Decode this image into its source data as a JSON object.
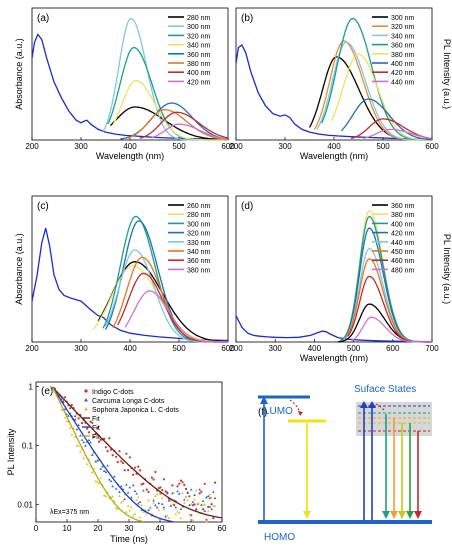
{
  "chart_data": [
    {
      "panel": "(a)",
      "type": "line",
      "xlabel": "Wavelength (nm)",
      "ylabel_left": "Absorbance (a.u.)",
      "ylabel_right": "",
      "xlim": [
        200,
        600
      ],
      "xticks": [
        200,
        300,
        400,
        500,
        600
      ],
      "ylim": [
        0,
        1.0
      ],
      "legend_position": "top-right",
      "absorbance": {
        "x": [
          200,
          205,
          212,
          220,
          230,
          245,
          260,
          275,
          290,
          300,
          305,
          312,
          320,
          335,
          350,
          370,
          390,
          410,
          430,
          450,
          480,
          520,
          560,
          600
        ],
        "y": [
          0.62,
          0.74,
          0.8,
          0.76,
          0.62,
          0.44,
          0.32,
          0.22,
          0.15,
          0.13,
          0.14,
          0.15,
          0.12,
          0.08,
          0.06,
          0.045,
          0.035,
          0.03,
          0.025,
          0.02,
          0.015,
          0.01,
          0.008,
          0.006
        ]
      },
      "series": [
        {
          "name": "280 nm",
          "color": "#000000",
          "peak": 410,
          "amp": 0.25,
          "wl": 55,
          "wr": 85,
          "start": 360,
          "end": 600
        },
        {
          "name": "300 nm",
          "color": "#7fc7ea",
          "peak": 402,
          "amp": 0.92,
          "wl": 35,
          "wr": 45,
          "start": 345,
          "end": 600
        },
        {
          "name": "320 nm",
          "color": "#1aa089",
          "peak": 408,
          "amp": 0.7,
          "wl": 40,
          "wr": 52,
          "start": 355,
          "end": 600
        },
        {
          "name": "340 nm",
          "color": "#f0e060",
          "peak": 412,
          "amp": 0.45,
          "wl": 40,
          "wr": 55,
          "start": 365,
          "end": 600
        },
        {
          "name": "360 nm",
          "color": "#1f6fb8",
          "peak": 485,
          "amp": 0.28,
          "wl": 55,
          "wr": 60,
          "start": 380,
          "end": 600
        },
        {
          "name": "380 nm",
          "color": "#e07a20",
          "peak": 470,
          "amp": 0.23,
          "wl": 45,
          "wr": 65,
          "start": 395,
          "end": 600
        },
        {
          "name": "400 nm",
          "color": "#c02a2a",
          "peak": 495,
          "amp": 0.21,
          "wl": 45,
          "wr": 65,
          "start": 420,
          "end": 600
        },
        {
          "name": "420 nm",
          "color": "#d070d0",
          "peak": 500,
          "amp": 0.12,
          "wl": 40,
          "wr": 60,
          "start": 445,
          "end": 600
        }
      ]
    },
    {
      "panel": "(b)",
      "type": "line",
      "xlabel": "Wavelength (nm)",
      "ylabel_left": "",
      "ylabel_right": "PL Intensity (a.u.)",
      "xlim": [
        200,
        600
      ],
      "xticks": [
        200,
        300,
        400,
        500,
        600
      ],
      "ylim": [
        0,
        1.0
      ],
      "legend_position": "top-right",
      "absorbance": {
        "x": [
          200,
          205,
          212,
          220,
          230,
          245,
          260,
          275,
          290,
          300,
          310,
          320,
          335,
          350,
          370,
          390,
          410,
          440,
          480,
          520,
          560,
          600
        ],
        "y": [
          0.58,
          0.7,
          0.72,
          0.66,
          0.52,
          0.36,
          0.26,
          0.2,
          0.18,
          0.19,
          0.17,
          0.12,
          0.08,
          0.06,
          0.045,
          0.035,
          0.03,
          0.024,
          0.018,
          0.012,
          0.008,
          0.006
        ]
      },
      "series": [
        {
          "name": "300 nm",
          "color": "#000000",
          "peak": 405,
          "amp": 0.63,
          "wl": 40,
          "wr": 65,
          "start": 350,
          "end": 600
        },
        {
          "name": "320 nm",
          "color": "#f08a30",
          "peak": 420,
          "amp": 0.75,
          "wl": 40,
          "wr": 55,
          "start": 360,
          "end": 600
        },
        {
          "name": "340 nm",
          "color": "#7fc7ea",
          "peak": 425,
          "amp": 0.74,
          "wl": 40,
          "wr": 55,
          "start": 365,
          "end": 600
        },
        {
          "name": "360 nm",
          "color": "#1aa089",
          "peak": 438,
          "amp": 0.92,
          "wl": 45,
          "wr": 55,
          "start": 375,
          "end": 600
        },
        {
          "name": "380 nm",
          "color": "#f0e060",
          "peak": 450,
          "amp": 0.65,
          "wl": 45,
          "wr": 55,
          "start": 395,
          "end": 600
        },
        {
          "name": "400 nm",
          "color": "#1f6fb8",
          "peak": 470,
          "amp": 0.31,
          "wl": 45,
          "wr": 60,
          "start": 415,
          "end": 600
        },
        {
          "name": "420 nm",
          "color": "#c02a2a",
          "peak": 500,
          "amp": 0.16,
          "wl": 40,
          "wr": 60,
          "start": 435,
          "end": 600
        },
        {
          "name": "440 nm",
          "color": "#d070d0",
          "peak": 515,
          "amp": 0.08,
          "wl": 40,
          "wr": 60,
          "start": 460,
          "end": 600
        }
      ]
    },
    {
      "panel": "(c)",
      "type": "line",
      "xlabel": "",
      "ylabel_left": "Absorbance (a.u.)",
      "ylabel_right": "",
      "xlim": [
        200,
        600
      ],
      "xticks": [
        200,
        300,
        400,
        500,
        600
      ],
      "ylim": [
        0,
        1.0
      ],
      "legend_position": "top-right",
      "absorbance": {
        "x": [
          200,
          210,
          220,
          228,
          236,
          245,
          255,
          265,
          280,
          300,
          320,
          335,
          345,
          360,
          380,
          400,
          430,
          460,
          500,
          550,
          600
        ],
        "y": [
          0.28,
          0.45,
          0.68,
          0.78,
          0.66,
          0.46,
          0.36,
          0.32,
          0.3,
          0.28,
          0.22,
          0.18,
          0.17,
          0.12,
          0.08,
          0.06,
          0.045,
          0.035,
          0.025,
          0.015,
          0.01
        ]
      },
      "series": [
        {
          "name": "260 nm",
          "color": "#000000",
          "peak": 410,
          "amp": 0.55,
          "wl": 65,
          "wr": 80,
          "start": 335,
          "end": 600
        },
        {
          "name": "280 nm",
          "color": "#f0e060",
          "peak": 405,
          "amp": 0.52,
          "wl": 60,
          "wr": 75,
          "start": 325,
          "end": 600
        },
        {
          "name": "300 nm",
          "color": "#1aa089",
          "peak": 412,
          "amp": 0.86,
          "wl": 45,
          "wr": 55,
          "start": 345,
          "end": 600
        },
        {
          "name": "320 nm",
          "color": "#1f6fb8",
          "peak": 418,
          "amp": 0.83,
          "wl": 45,
          "wr": 55,
          "start": 350,
          "end": 600
        },
        {
          "name": "330 nm",
          "color": "#7fc7ea",
          "peak": 410,
          "amp": 0.63,
          "wl": 45,
          "wr": 55,
          "start": 350,
          "end": 600
        },
        {
          "name": "340 nm",
          "color": "#e07a20",
          "peak": 425,
          "amp": 0.58,
          "wl": 45,
          "wr": 55,
          "start": 365,
          "end": 600
        },
        {
          "name": "360 nm",
          "color": "#c02a2a",
          "peak": 428,
          "amp": 0.47,
          "wl": 45,
          "wr": 55,
          "start": 375,
          "end": 600
        },
        {
          "name": "380 nm",
          "color": "#d070d0",
          "peak": 440,
          "amp": 0.35,
          "wl": 45,
          "wr": 55,
          "start": 390,
          "end": 600
        }
      ]
    },
    {
      "panel": "(d)",
      "type": "line",
      "xlabel": "Wavelength (nm)",
      "ylabel_left": "",
      "ylabel_right": "PL Intensity (a.u.)",
      "xlim": [
        200,
        700
      ],
      "xticks": [
        200,
        300,
        400,
        500,
        600,
        700
      ],
      "ylim": [
        0,
        1.0
      ],
      "legend_position": "top-right",
      "absorbance": {
        "x": [
          200,
          215,
          230,
          245,
          260,
          280,
          300,
          330,
          360,
          390,
          410,
          420,
          430,
          440,
          460,
          490,
          520,
          560,
          600,
          650,
          700
        ],
        "y": [
          0.18,
          0.1,
          0.06,
          0.045,
          0.04,
          0.035,
          0.032,
          0.03,
          0.032,
          0.045,
          0.065,
          0.075,
          0.07,
          0.055,
          0.03,
          0.018,
          0.012,
          0.008,
          0.006,
          0.004,
          0.003
        ]
      },
      "series": [
        {
          "name": "360 nm",
          "color": "#000000",
          "peak": 540,
          "amp": 0.26,
          "wl": 35,
          "wr": 55,
          "start": 460,
          "end": 700
        },
        {
          "name": "380 nm",
          "color": "#f0e060",
          "peak": 540,
          "amp": 0.9,
          "wl": 35,
          "wr": 50,
          "start": 465,
          "end": 700
        },
        {
          "name": "400 nm",
          "color": "#1aa089",
          "peak": 540,
          "amp": 0.86,
          "wl": 35,
          "wr": 50,
          "start": 465,
          "end": 700
        },
        {
          "name": "420 nm",
          "color": "#1f6fb8",
          "peak": 540,
          "amp": 0.78,
          "wl": 35,
          "wr": 50,
          "start": 470,
          "end": 700
        },
        {
          "name": "440 nm",
          "color": "#7fc7ea",
          "peak": 540,
          "amp": 0.64,
          "wl": 35,
          "wr": 50,
          "start": 475,
          "end": 700
        },
        {
          "name": "450 nm",
          "color": "#e07a20",
          "peak": 540,
          "amp": 0.57,
          "wl": 35,
          "wr": 50,
          "start": 480,
          "end": 700
        },
        {
          "name": "460 nm",
          "color": "#c02a2a",
          "peak": 540,
          "amp": 0.45,
          "wl": 35,
          "wr": 50,
          "start": 485,
          "end": 700
        },
        {
          "name": "480 nm",
          "color": "#d070d0",
          "peak": 545,
          "amp": 0.17,
          "wl": 30,
          "wr": 50,
          "start": 495,
          "end": 700
        }
      ]
    },
    {
      "panel": "(e)",
      "type": "scatter",
      "xlabel": "Time (ns)",
      "ylabel": "PL Intensity",
      "yscale": "log",
      "xlim": [
        0,
        60
      ],
      "xticks": [
        0,
        10,
        20,
        30,
        40,
        50,
        60
      ],
      "ylim": [
        0.005,
        1.2
      ],
      "yticks": [
        0.01,
        0.1,
        1
      ],
      "ytick_labels": [
        "0.01",
        "0.1",
        "1"
      ],
      "annotation": "λEx=375 nm",
      "legend_position": "top-right",
      "series": [
        {
          "name": "Indigo C-dots",
          "color": "#c8322a",
          "marker": "circle",
          "t0": 5.5,
          "amp": 0.95,
          "tau": 7.5,
          "floor": 0.01
        },
        {
          "name": "Carcuma Longa C-dots",
          "color": "#2e63c4",
          "marker": "triangle",
          "t0": 5.5,
          "amp": 0.95,
          "tau": 5.0,
          "floor": 0.009
        },
        {
          "name": "Sophora Japonica L. C-dots",
          "color": "#d9c61f",
          "marker": "triangle",
          "t0": 5.5,
          "amp": 0.95,
          "tau": 3.6,
          "floor": 0.009
        }
      ],
      "fits": [
        {
          "name": "Fit",
          "color": "#6b1a10",
          "tau": 7.8
        },
        {
          "name": "Fit",
          "color": "#1e3fc4",
          "tau": 5.2
        },
        {
          "name": "Fit",
          "color": "#b8a81a",
          "tau": 3.9
        }
      ]
    }
  ],
  "diagram_f": {
    "panel": "(f)",
    "lumo_label": "LUMO",
    "homo_label": "HOMO",
    "surface_label": "Suface States"
  }
}
